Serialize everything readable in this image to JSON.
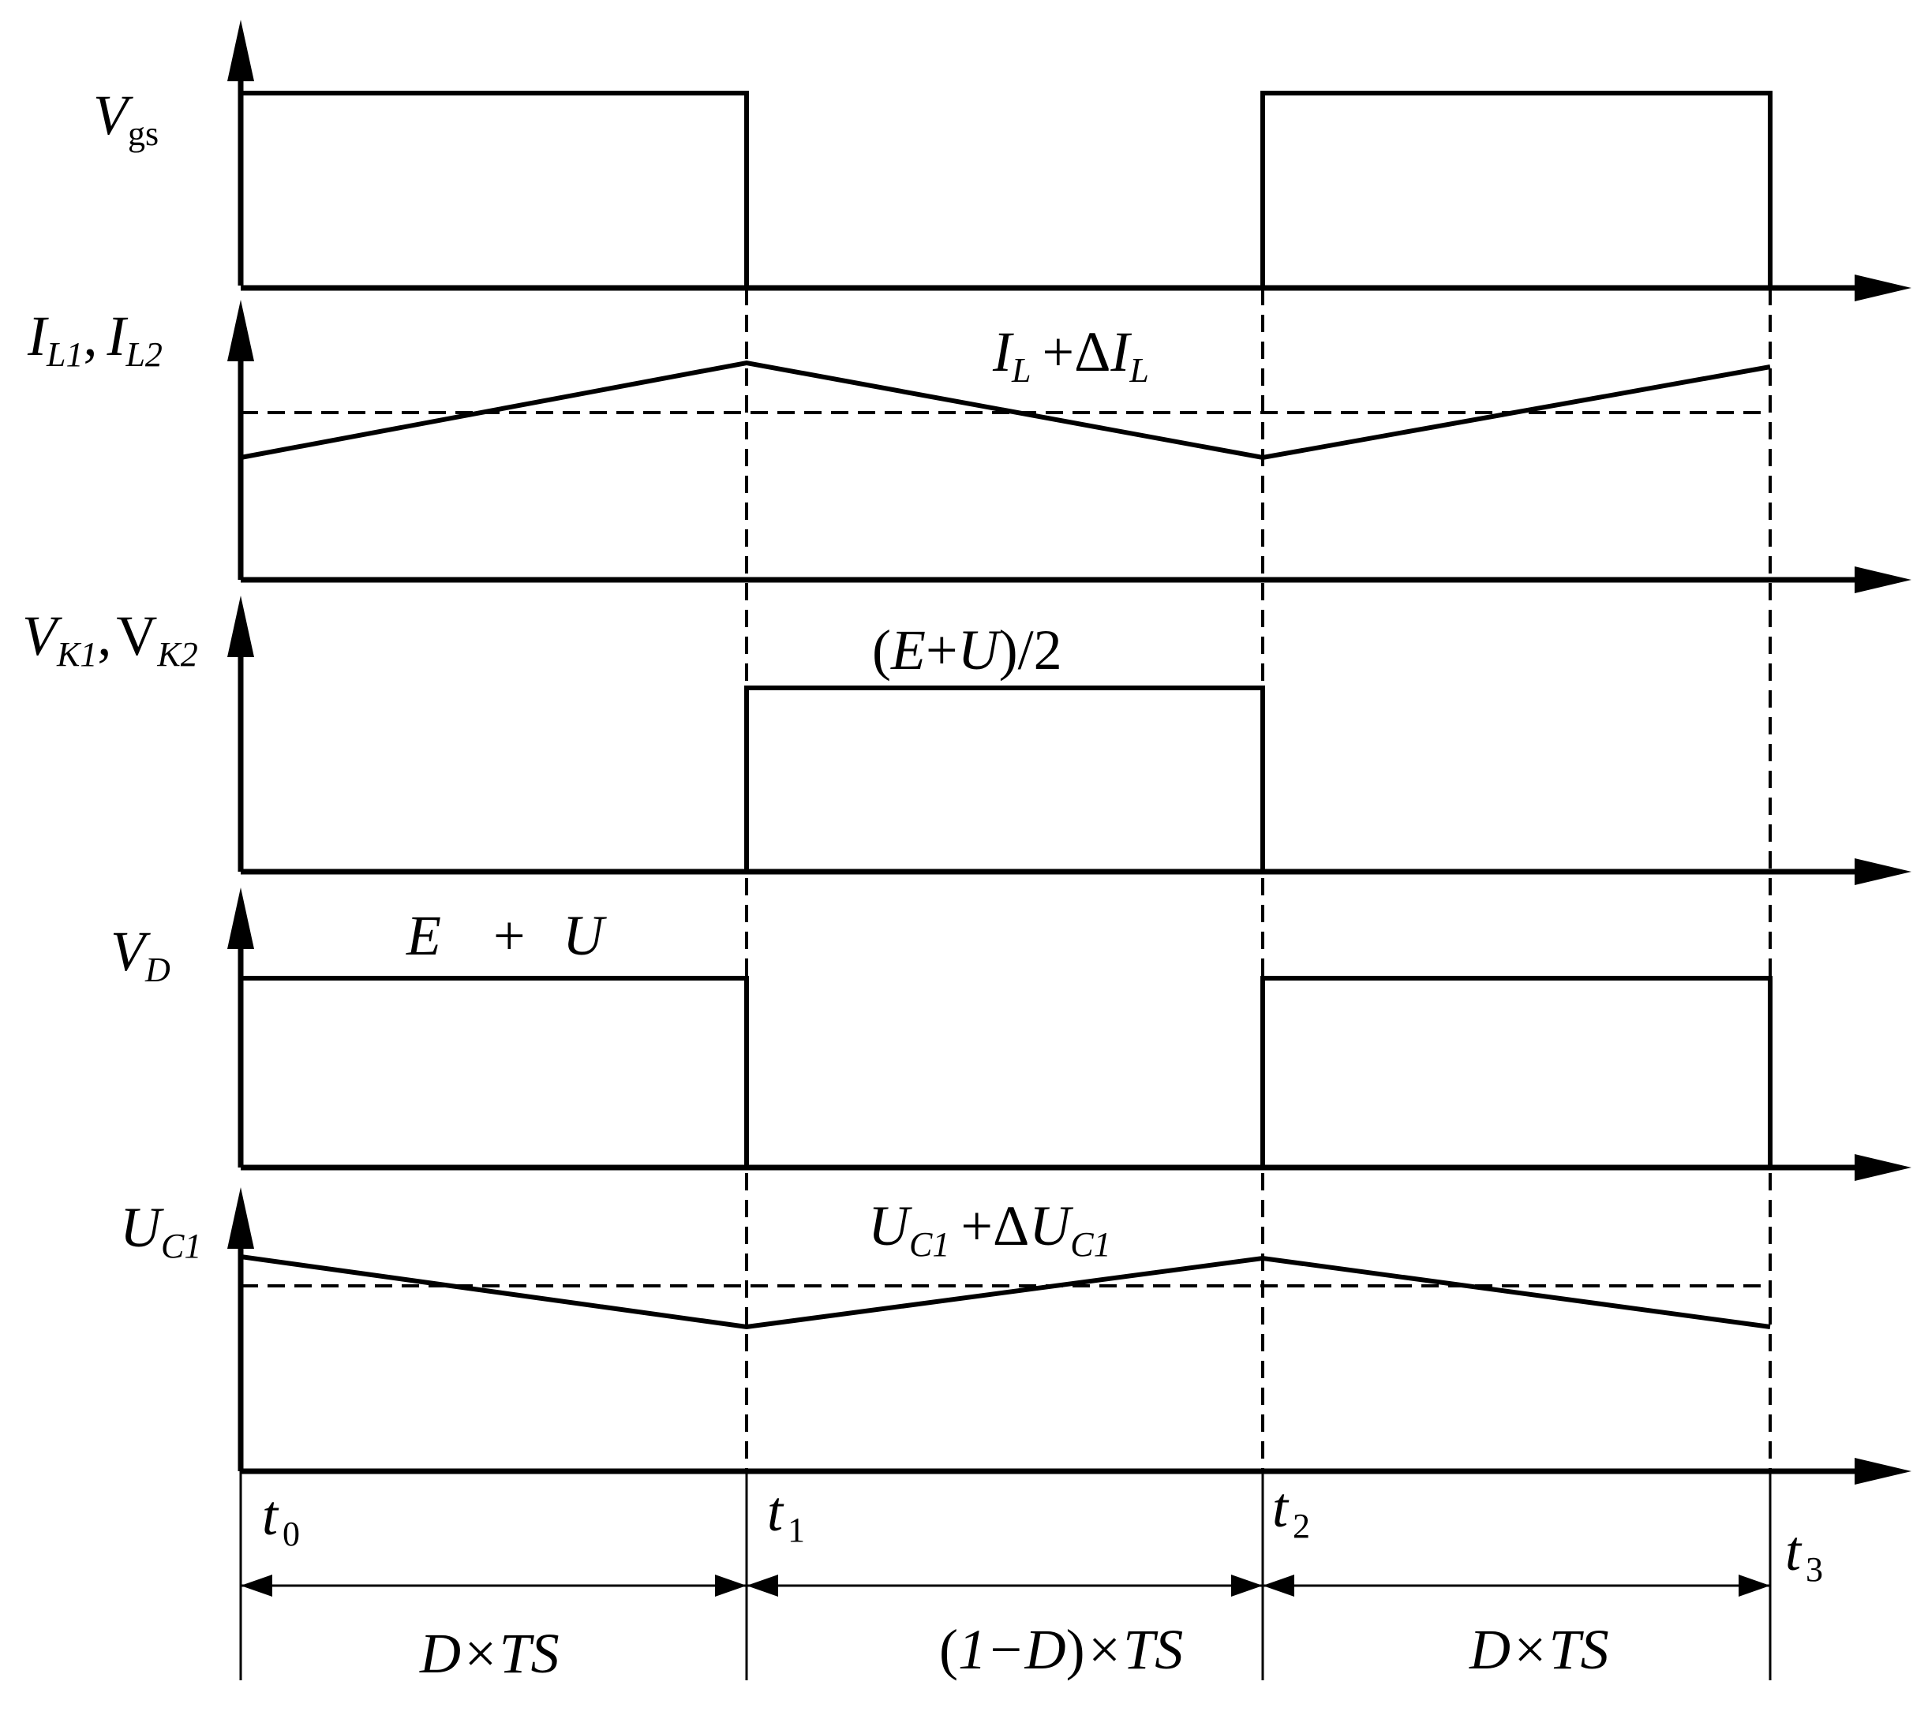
{
  "labels": {
    "vgs": {
      "main": "V",
      "sub": "gs"
    },
    "il": {
      "main1": "I",
      "sub1": "L1",
      "sep": ",",
      "main2": "I",
      "sub2": "L2"
    },
    "vk": {
      "main1": "V",
      "sub1": "K1",
      "sep": ",",
      "main2": "V",
      "sub2": "K2"
    },
    "vd": {
      "main": "V",
      "sub": "D"
    },
    "uc": {
      "main": "U",
      "sub": "C1"
    }
  },
  "annotations": {
    "il_peak": {
      "a": "I",
      "a_sub": "L",
      "op": "+Δ",
      "b": "I",
      "b_sub": "L"
    },
    "vk_level": {
      "lp": "(",
      "e": "E",
      "plus": "+",
      "u": "U",
      "rp": ")",
      "slash": "/",
      "two": "2"
    },
    "vd_level": {
      "e": "E",
      "plus": "+",
      "u": "U"
    },
    "uc_peak": {
      "a": "U",
      "a_sub": "C1",
      "op": "+Δ",
      "b": "U",
      "b_sub": "C1"
    }
  },
  "time_marks": [
    {
      "main": "t",
      "sub": "0"
    },
    {
      "main": "t",
      "sub": "1"
    },
    {
      "main": "t",
      "sub": "2"
    },
    {
      "main": "t",
      "sub": "3"
    }
  ],
  "intervals": {
    "first": "D×TS",
    "second_lp": "(",
    "second_body": "1−D",
    "second_rp": ")",
    "second_tail": "×TS",
    "third": "D×TS"
  }
}
